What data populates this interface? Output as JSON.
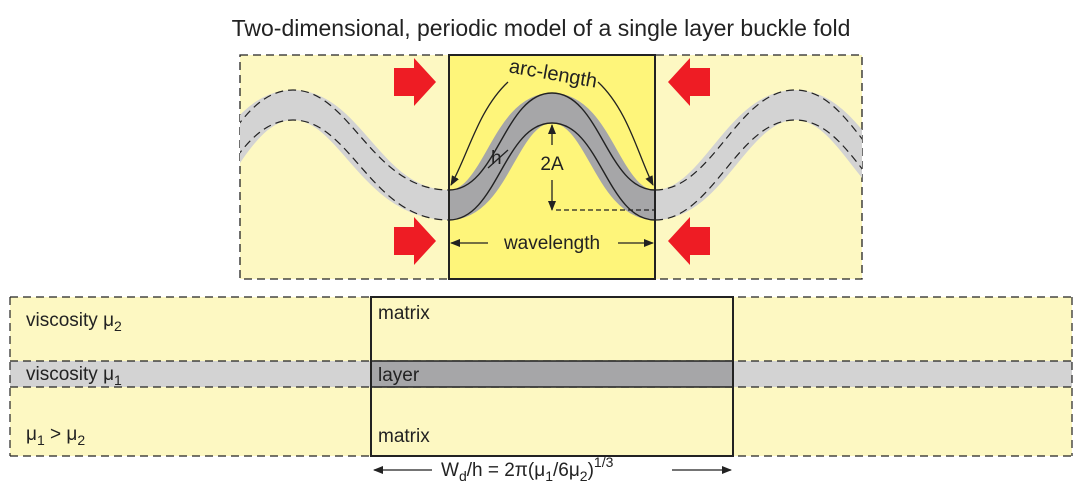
{
  "title": "Two-dimensional, periodic model of a single layer buckle fold",
  "top_panel": {
    "arc_length_label": "arc-length",
    "thickness_label": "h",
    "amplitude_label": "2A",
    "wavelength_label": "wavelength"
  },
  "bottom_panel": {
    "matrix_top_label": "matrix",
    "layer_label": "layer",
    "matrix_bottom_label": "matrix",
    "viscosity_2_prefix": "viscosity μ",
    "viscosity_2_sub": "2",
    "viscosity_1_prefix": "viscosity μ",
    "viscosity_1_sub": "1",
    "relation": {
      "mu_a": "μ",
      "sub_a": "1",
      "gt": " > μ",
      "sub_b": "2"
    },
    "formula": {
      "w": "W",
      "w_sub": "d",
      "mid": "/h = 2π(μ",
      "sub1": "1",
      "mid2": "/6μ",
      "sub2": "2",
      "close": ")",
      "exp": "1/3"
    }
  },
  "colors": {
    "matrix_fill": "#fdf8c2",
    "center_fill": "#fef57a",
    "layer_gray": "#a6a6a8",
    "layer_light_gray": "#d3d3d3",
    "arrow_red": "#ee1c24",
    "stroke": "#222222"
  }
}
